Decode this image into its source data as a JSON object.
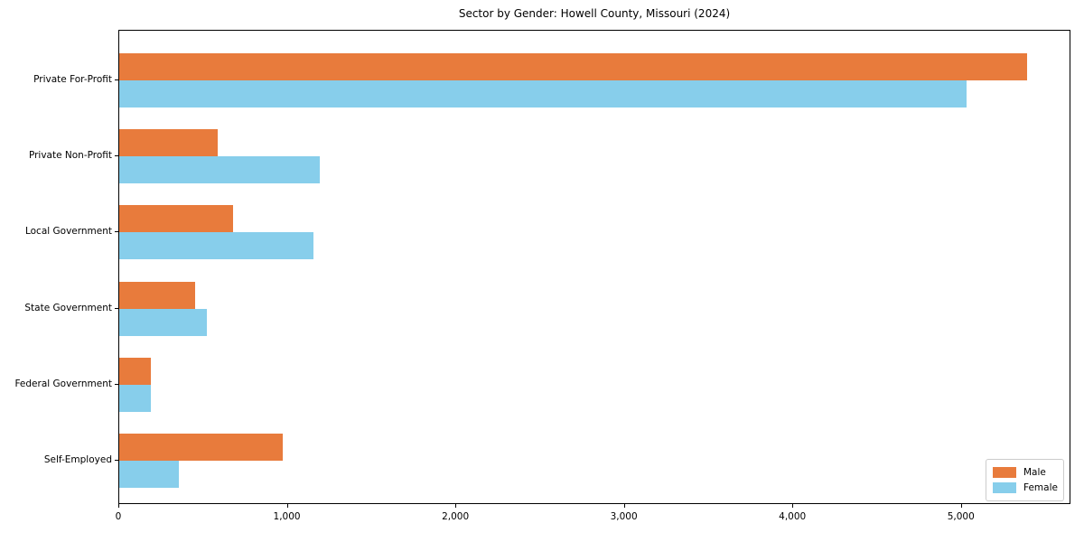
{
  "chart_data": {
    "type": "bar",
    "orientation": "horizontal",
    "title": "Sector by Gender: Howell County, Missouri (2024)",
    "categories": [
      "Private For-Profit",
      "Private Non-Profit",
      "Local Government",
      "State Government",
      "Federal Government",
      "Self-Employed"
    ],
    "series": [
      {
        "name": "Male",
        "color": "#e87b3c",
        "values": [
          5390,
          585,
          675,
          450,
          185,
          970
        ]
      },
      {
        "name": "Female",
        "color": "#87ceeb",
        "values": [
          5030,
          1190,
          1150,
          520,
          190,
          355
        ]
      }
    ],
    "xlabel": "",
    "ylabel": "",
    "xlim": [
      0,
      5650
    ],
    "xticks": [
      0,
      1000,
      2000,
      3000,
      4000,
      5000
    ],
    "xtick_labels": [
      "0",
      "1,000",
      "2,000",
      "3,000",
      "4,000",
      "5,000"
    ],
    "grid": false,
    "legend": {
      "position": "lower right",
      "entries": [
        {
          "label": "Male",
          "color": "#e87b3c"
        },
        {
          "label": "Female",
          "color": "#87ceeb"
        }
      ]
    }
  }
}
